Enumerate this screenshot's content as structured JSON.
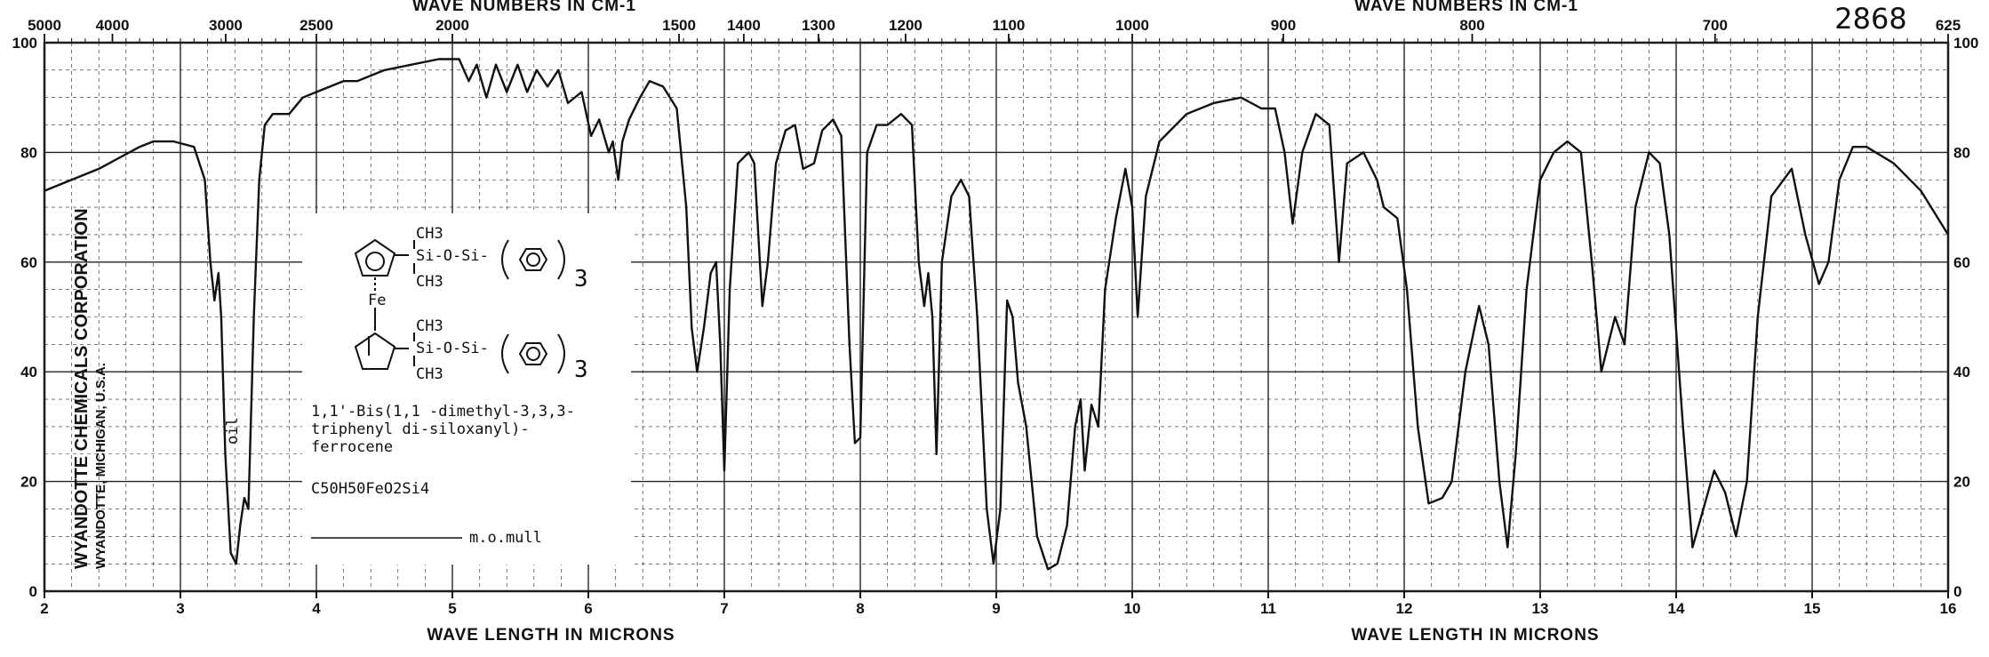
{
  "catalog_number": "2868",
  "corporation": [
    "WYANDOTTE CHEMICALS CORPORATION",
    "WYANDOTTE, MICHIGAN, U.S.A."
  ],
  "compound": {
    "name_lines": [
      "1,1'-Bis(1,1 -dimethyl-3,3,3-",
      "triphenyl di-siloxanyl)-",
      "ferrocene"
    ],
    "formula": "C50H50FeO2Si4",
    "phase": "m.o.mull",
    "structure_labels": [
      "CH3",
      "Si-O-Si-",
      "CH3",
      "Fe",
      "CH3",
      "Si-O-Si-",
      "CH3",
      "3",
      "3"
    ]
  },
  "annotation_oil": "oil",
  "chart_data": {
    "type": "line",
    "title": "",
    "xlabel": "WAVE LENGTH IN MICRONS",
    "x2label": "WAVE NUMBERS IN CM-1",
    "ylabel": "",
    "xlim": [
      2,
      16
    ],
    "ylim": [
      0,
      100
    ],
    "x_ticks": [
      "2",
      "3",
      "4",
      "5",
      "6",
      "7",
      "8",
      "9",
      "10",
      "11",
      "12",
      "13",
      "14",
      "15",
      "16"
    ],
    "y_ticks_left": [
      "0",
      "20",
      "40",
      "60",
      "80",
      "100"
    ],
    "y_ticks_right": [
      "0",
      "20",
      "40",
      "60",
      "80",
      "100"
    ],
    "wavenumber_ticks": [
      {
        "label": "5000",
        "micron": 2.0
      },
      {
        "label": "4000",
        "micron": 2.5
      },
      {
        "label": "3000",
        "micron": 3.333
      },
      {
        "label": "2500",
        "micron": 4.0
      },
      {
        "label": "2000",
        "micron": 5.0
      },
      {
        "label": "1500",
        "micron": 6.667
      },
      {
        "label": "1400",
        "micron": 7.143
      },
      {
        "label": "1300",
        "micron": 7.692
      },
      {
        "label": "1200",
        "micron": 8.333
      },
      {
        "label": "1100",
        "micron": 9.091
      },
      {
        "label": "1000",
        "micron": 10.0
      },
      {
        "label": "900",
        "micron": 11.111
      },
      {
        "label": "800",
        "micron": 12.5
      },
      {
        "label": "700",
        "micron": 14.286
      },
      {
        "label": "625",
        "micron": 16.0
      }
    ],
    "grid": true,
    "series": [
      {
        "points": [
          [
            2.0,
            73
          ],
          [
            2.2,
            75
          ],
          [
            2.4,
            77
          ],
          [
            2.55,
            79
          ],
          [
            2.7,
            81
          ],
          [
            2.8,
            82
          ],
          [
            2.95,
            82
          ],
          [
            3.1,
            81
          ],
          [
            3.18,
            75
          ],
          [
            3.22,
            60
          ],
          [
            3.25,
            53
          ],
          [
            3.28,
            58
          ],
          [
            3.3,
            50
          ],
          [
            3.33,
            25
          ],
          [
            3.37,
            7
          ],
          [
            3.41,
            5
          ],
          [
            3.44,
            12
          ],
          [
            3.47,
            17
          ],
          [
            3.5,
            15
          ],
          [
            3.54,
            50
          ],
          [
            3.58,
            75
          ],
          [
            3.62,
            85
          ],
          [
            3.68,
            87
          ],
          [
            3.8,
            87
          ],
          [
            3.9,
            90
          ],
          [
            4.0,
            91
          ],
          [
            4.2,
            93
          ],
          [
            4.3,
            93
          ],
          [
            4.5,
            95
          ],
          [
            4.7,
            96
          ],
          [
            4.9,
            97
          ],
          [
            5.05,
            97
          ],
          [
            5.12,
            93
          ],
          [
            5.18,
            96
          ],
          [
            5.25,
            90
          ],
          [
            5.32,
            96
          ],
          [
            5.4,
            91
          ],
          [
            5.48,
            96
          ],
          [
            5.55,
            91
          ],
          [
            5.62,
            95
          ],
          [
            5.7,
            92
          ],
          [
            5.78,
            95
          ],
          [
            5.85,
            89
          ],
          [
            5.95,
            91
          ],
          [
            6.02,
            83
          ],
          [
            6.08,
            86
          ],
          [
            6.15,
            80
          ],
          [
            6.18,
            82
          ],
          [
            6.22,
            75
          ],
          [
            6.25,
            82
          ],
          [
            6.3,
            86
          ],
          [
            6.38,
            90
          ],
          [
            6.45,
            93
          ],
          [
            6.55,
            92
          ],
          [
            6.65,
            88
          ],
          [
            6.72,
            70
          ],
          [
            6.76,
            48
          ],
          [
            6.8,
            40
          ],
          [
            6.85,
            48
          ],
          [
            6.9,
            58
          ],
          [
            6.94,
            60
          ],
          [
            6.97,
            45
          ],
          [
            7.0,
            22
          ],
          [
            7.04,
            55
          ],
          [
            7.1,
            78
          ],
          [
            7.18,
            80
          ],
          [
            7.22,
            78
          ],
          [
            7.28,
            52
          ],
          [
            7.32,
            60
          ],
          [
            7.38,
            78
          ],
          [
            7.45,
            84
          ],
          [
            7.52,
            85
          ],
          [
            7.58,
            77
          ],
          [
            7.66,
            78
          ],
          [
            7.72,
            84
          ],
          [
            7.8,
            86
          ],
          [
            7.86,
            83
          ],
          [
            7.92,
            45
          ],
          [
            7.96,
            27
          ],
          [
            8.0,
            28
          ],
          [
            8.05,
            80
          ],
          [
            8.12,
            85
          ],
          [
            8.2,
            85
          ],
          [
            8.3,
            87
          ],
          [
            8.38,
            85
          ],
          [
            8.43,
            60
          ],
          [
            8.47,
            52
          ],
          [
            8.5,
            58
          ],
          [
            8.53,
            50
          ],
          [
            8.56,
            25
          ],
          [
            8.6,
            60
          ],
          [
            8.67,
            72
          ],
          [
            8.74,
            75
          ],
          [
            8.8,
            72
          ],
          [
            8.86,
            50
          ],
          [
            8.93,
            15
          ],
          [
            8.98,
            5
          ],
          [
            9.03,
            15
          ],
          [
            9.08,
            53
          ],
          [
            9.12,
            50
          ],
          [
            9.16,
            38
          ],
          [
            9.22,
            30
          ],
          [
            9.3,
            10
          ],
          [
            9.38,
            4
          ],
          [
            9.45,
            5
          ],
          [
            9.52,
            12
          ],
          [
            9.58,
            30
          ],
          [
            9.62,
            35
          ],
          [
            9.65,
            22
          ],
          [
            9.7,
            34
          ],
          [
            9.75,
            30
          ],
          [
            9.8,
            55
          ],
          [
            9.88,
            68
          ],
          [
            9.95,
            77
          ],
          [
            10.0,
            70
          ],
          [
            10.04,
            50
          ],
          [
            10.1,
            72
          ],
          [
            10.2,
            82
          ],
          [
            10.4,
            87
          ],
          [
            10.6,
            89
          ],
          [
            10.8,
            90
          ],
          [
            10.95,
            88
          ],
          [
            11.05,
            88
          ],
          [
            11.12,
            80
          ],
          [
            11.18,
            67
          ],
          [
            11.25,
            80
          ],
          [
            11.35,
            87
          ],
          [
            11.45,
            85
          ],
          [
            11.52,
            60
          ],
          [
            11.58,
            78
          ],
          [
            11.7,
            80
          ],
          [
            11.8,
            75
          ],
          [
            11.85,
            70
          ],
          [
            11.95,
            68
          ],
          [
            12.02,
            55
          ],
          [
            12.1,
            30
          ],
          [
            12.18,
            16
          ],
          [
            12.28,
            17
          ],
          [
            12.35,
            20
          ],
          [
            12.45,
            40
          ],
          [
            12.55,
            52
          ],
          [
            12.62,
            45
          ],
          [
            12.7,
            20
          ],
          [
            12.76,
            8
          ],
          [
            12.82,
            25
          ],
          [
            12.9,
            55
          ],
          [
            13.0,
            75
          ],
          [
            13.1,
            80
          ],
          [
            13.2,
            82
          ],
          [
            13.3,
            80
          ],
          [
            13.38,
            60
          ],
          [
            13.45,
            40
          ],
          [
            13.5,
            45
          ],
          [
            13.55,
            50
          ],
          [
            13.62,
            45
          ],
          [
            13.7,
            70
          ],
          [
            13.8,
            80
          ],
          [
            13.88,
            78
          ],
          [
            13.95,
            65
          ],
          [
            14.05,
            30
          ],
          [
            14.12,
            8
          ],
          [
            14.2,
            15
          ],
          [
            14.28,
            22
          ],
          [
            14.36,
            18
          ],
          [
            14.44,
            10
          ],
          [
            14.52,
            20
          ],
          [
            14.6,
            50
          ],
          [
            14.7,
            72
          ],
          [
            14.85,
            77
          ],
          [
            14.95,
            65
          ],
          [
            15.05,
            56
          ],
          [
            15.12,
            60
          ],
          [
            15.2,
            75
          ],
          [
            15.3,
            81
          ],
          [
            15.4,
            81
          ],
          [
            15.6,
            78
          ],
          [
            15.8,
            73
          ],
          [
            16.0,
            65
          ]
        ]
      }
    ]
  }
}
